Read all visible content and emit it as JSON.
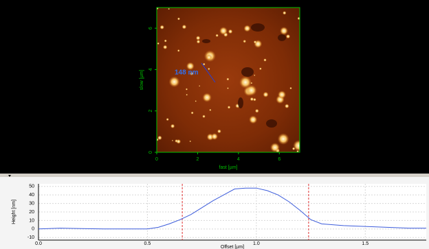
{
  "chart_data": [
    {
      "type": "image",
      "x_label": "fast [µm]",
      "y_label": "slow [µm]",
      "annotation": "148 nm",
      "xlim": [
        0,
        7
      ],
      "ylim": [
        0,
        7
      ],
      "xticks": [
        0,
        2,
        4,
        6
      ],
      "yticks": [
        0,
        2,
        4,
        6
      ],
      "color": "#00c000"
    },
    {
      "type": "line",
      "x_label": "Offset [µm]",
      "y_label": "Height [nm]",
      "x": [
        0.0,
        0.1,
        0.2,
        0.3,
        0.4,
        0.5,
        0.55,
        0.6,
        0.65,
        0.7,
        0.75,
        0.8,
        0.85,
        0.9,
        0.95,
        1.0,
        1.05,
        1.1,
        1.15,
        1.2,
        1.25,
        1.3,
        1.4,
        1.5,
        1.6,
        1.7,
        1.78
      ],
      "values": [
        0,
        1,
        0.5,
        0,
        0,
        0,
        2,
        6,
        11,
        17,
        25,
        33,
        40,
        47,
        48,
        48,
        45,
        40,
        32,
        22,
        11,
        6,
        4,
        3,
        2,
        1,
        1
      ],
      "color": "#3b5bdb",
      "cursors": [
        0.66,
        1.24
      ],
      "cursor_color": "#e03030",
      "xlim": [
        0,
        1.78
      ],
      "ylim": [
        -13,
        53
      ],
      "xticks": [
        {
          "value": 0,
          "label": "0.0"
        },
        0.5,
        {
          "value": 1,
          "label": "1.0"
        },
        1.5
      ],
      "yticks": [
        -10,
        0,
        10,
        20,
        30,
        40,
        50
      ],
      "grid": true
    }
  ]
}
